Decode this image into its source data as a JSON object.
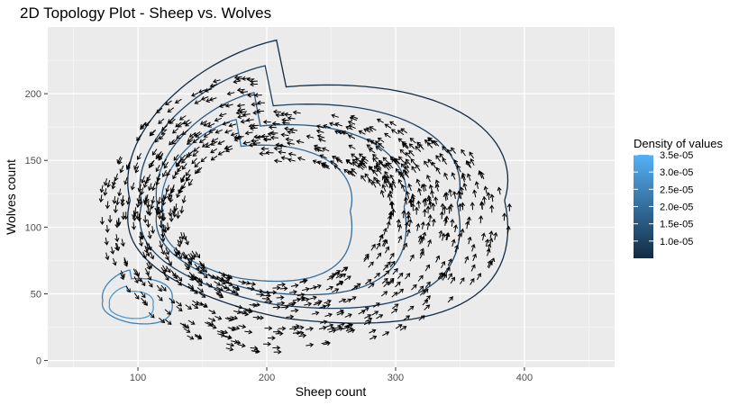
{
  "chart_data": {
    "type": "contour",
    "title": "2D Topology Plot - Sheep vs. Wolves",
    "xlabel": "Sheep count",
    "ylabel": "Wolves count",
    "xlim": [
      30,
      470
    ],
    "ylim": [
      -5,
      250
    ],
    "x_ticks": [
      100,
      200,
      300,
      400
    ],
    "y_ticks": [
      0,
      50,
      100,
      150,
      200
    ],
    "grid": true,
    "legend": {
      "title": "Density of values",
      "position": "right",
      "color_low": "#132B43",
      "color_high": "#56B1F7",
      "range": [
        5e-06,
        3.5e-05
      ],
      "labels": [
        "3.5e-05",
        "3.0e-05",
        "2.5e-05",
        "2.0e-05",
        "1.5e-05",
        "1.0e-05"
      ],
      "values": [
        3.5e-05,
        3e-05,
        2.5e-05,
        2e-05,
        1.5e-05,
        1e-05
      ]
    },
    "contours": [
      {
        "level": 5e-06,
        "center": [
          215,
          120
        ],
        "rx": 190,
        "ry": 105
      },
      {
        "level": 1e-05,
        "center": [
          205,
          118
        ],
        "rx": 160,
        "ry": 90
      },
      {
        "level": 1.5e-05,
        "center": [
          195,
          115
        ],
        "rx": 125,
        "ry": 75
      },
      {
        "level": 2e-05,
        "center": [
          180,
          112
        ],
        "rx": 95,
        "ry": 60
      },
      {
        "level": 2.5e-05,
        "center": [
          95,
          45
        ],
        "rx": 35,
        "ry": 20
      },
      {
        "level": 3e-05,
        "center": [
          92,
          42
        ],
        "rx": 22,
        "ry": 12
      }
    ],
    "vector_field": {
      "description": "Population trajectory arrows circulating counter-clockwise around the cycle",
      "cycle_center": [
        200,
        110
      ],
      "cycle_rx": 165,
      "cycle_ry": 95
    }
  }
}
